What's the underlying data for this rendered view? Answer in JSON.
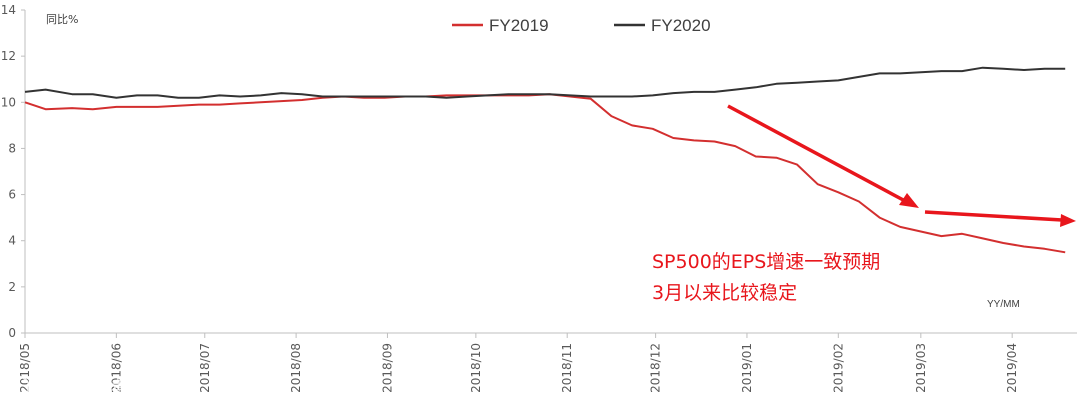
{
  "chart_data": {
    "type": "line",
    "unit_label": "同比%",
    "xunit_label": "YY/MM",
    "ylim": [
      0,
      14
    ],
    "yticks": [
      0,
      2,
      4,
      6,
      8,
      10,
      12,
      14
    ],
    "xticks": [
      "2018/05",
      "2018/06",
      "2018/07",
      "2018/08",
      "2018/09",
      "2018/10",
      "2018/11",
      "2018/12",
      "2019/01",
      "2019/02",
      "2019/03",
      "2019/04"
    ],
    "legend_position": "top-center",
    "series": [
      {
        "name": "FY2019",
        "color": "#d32f2f",
        "points": [
          [
            "2018/05/01",
            10.0
          ],
          [
            "2018/05/08",
            9.7
          ],
          [
            "2018/05/17",
            9.75
          ],
          [
            "2018/05/24",
            9.7
          ],
          [
            "2018/06/01",
            9.8
          ],
          [
            "2018/06/08",
            9.8
          ],
          [
            "2018/06/15",
            9.8
          ],
          [
            "2018/06/22",
            9.85
          ],
          [
            "2018/06/29",
            9.9
          ],
          [
            "2018/07/06",
            9.9
          ],
          [
            "2018/07/13",
            9.95
          ],
          [
            "2018/07/20",
            10.0
          ],
          [
            "2018/07/27",
            10.05
          ],
          [
            "2018/08/03",
            10.1
          ],
          [
            "2018/08/10",
            10.2
          ],
          [
            "2018/08/17",
            10.25
          ],
          [
            "2018/08/24",
            10.2
          ],
          [
            "2018/08/31",
            10.2
          ],
          [
            "2018/09/07",
            10.25
          ],
          [
            "2018/09/14",
            10.25
          ],
          [
            "2018/09/21",
            10.3
          ],
          [
            "2018/09/28",
            10.3
          ],
          [
            "2018/10/05",
            10.3
          ],
          [
            "2018/10/12",
            10.3
          ],
          [
            "2018/10/19",
            10.3
          ],
          [
            "2018/10/26",
            10.35
          ],
          [
            "2018/11/02",
            10.25
          ],
          [
            "2018/11/09",
            10.15
          ],
          [
            "2018/11/16",
            9.4
          ],
          [
            "2018/11/23",
            9.0
          ],
          [
            "2018/11/30",
            8.85
          ],
          [
            "2018/12/07",
            8.45
          ],
          [
            "2018/12/14",
            8.35
          ],
          [
            "2018/12/21",
            8.3
          ],
          [
            "2018/12/28",
            8.1
          ],
          [
            "2019/01/04",
            7.65
          ],
          [
            "2019/01/11",
            7.6
          ],
          [
            "2019/01/18",
            7.3
          ],
          [
            "2019/01/25",
            6.45
          ],
          [
            "2019/02/01",
            6.1
          ],
          [
            "2019/02/08",
            5.7
          ],
          [
            "2019/02/15",
            5.0
          ],
          [
            "2019/02/22",
            4.6
          ],
          [
            "2019/03/01",
            4.4
          ],
          [
            "2019/03/08",
            4.2
          ],
          [
            "2019/03/15",
            4.3
          ],
          [
            "2019/03/22",
            4.1
          ],
          [
            "2019/03/29",
            3.9
          ],
          [
            "2019/04/05",
            3.75
          ],
          [
            "2019/04/12",
            3.65
          ],
          [
            "2019/04/19",
            3.5
          ]
        ]
      },
      {
        "name": "FY2020",
        "color": "#333333",
        "points": [
          [
            "2018/05/01",
            10.45
          ],
          [
            "2018/05/08",
            10.55
          ],
          [
            "2018/05/17",
            10.35
          ],
          [
            "2018/05/24",
            10.35
          ],
          [
            "2018/06/01",
            10.2
          ],
          [
            "2018/06/08",
            10.3
          ],
          [
            "2018/06/15",
            10.3
          ],
          [
            "2018/06/22",
            10.2
          ],
          [
            "2018/06/29",
            10.2
          ],
          [
            "2018/07/06",
            10.3
          ],
          [
            "2018/07/13",
            10.25
          ],
          [
            "2018/07/20",
            10.3
          ],
          [
            "2018/07/27",
            10.4
          ],
          [
            "2018/08/03",
            10.35
          ],
          [
            "2018/08/10",
            10.25
          ],
          [
            "2018/08/17",
            10.25
          ],
          [
            "2018/08/24",
            10.25
          ],
          [
            "2018/08/31",
            10.25
          ],
          [
            "2018/09/07",
            10.25
          ],
          [
            "2018/09/14",
            10.25
          ],
          [
            "2018/09/21",
            10.2
          ],
          [
            "2018/09/28",
            10.25
          ],
          [
            "2018/10/05",
            10.3
          ],
          [
            "2018/10/12",
            10.35
          ],
          [
            "2018/10/19",
            10.35
          ],
          [
            "2018/10/26",
            10.35
          ],
          [
            "2018/11/02",
            10.3
          ],
          [
            "2018/11/09",
            10.25
          ],
          [
            "2018/11/16",
            10.25
          ],
          [
            "2018/11/23",
            10.25
          ],
          [
            "2018/11/30",
            10.3
          ],
          [
            "2018/12/07",
            10.4
          ],
          [
            "2018/12/14",
            10.45
          ],
          [
            "2018/12/21",
            10.45
          ],
          [
            "2018/12/28",
            10.55
          ],
          [
            "2019/01/04",
            10.65
          ],
          [
            "2019/01/11",
            10.8
          ],
          [
            "2019/01/18",
            10.85
          ],
          [
            "2019/01/25",
            10.9
          ],
          [
            "2019/02/01",
            10.95
          ],
          [
            "2019/02/08",
            11.1
          ],
          [
            "2019/02/15",
            11.25
          ],
          [
            "2019/02/22",
            11.25
          ],
          [
            "2019/03/01",
            11.3
          ],
          [
            "2019/03/08",
            11.35
          ],
          [
            "2019/03/15",
            11.35
          ],
          [
            "2019/03/22",
            11.5
          ],
          [
            "2019/03/29",
            11.45
          ],
          [
            "2019/04/05",
            11.4
          ],
          [
            "2019/04/12",
            11.45
          ],
          [
            "2019/04/19",
            11.45
          ]
        ]
      }
    ],
    "annotations": [
      "SP500的EPS增速一致预期",
      "3月以来比较稳定"
    ],
    "arrows_color": "#e8161c"
  },
  "watermark": "大数跨境"
}
